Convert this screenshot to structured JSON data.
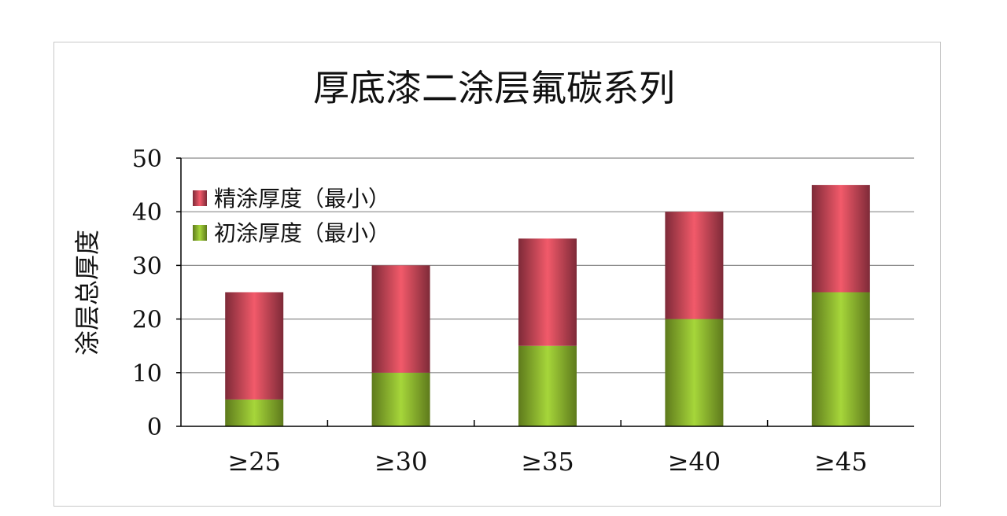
{
  "chart_data": {
    "type": "bar",
    "stacked": true,
    "title": "厚底漆二涂层氟碳系列",
    "xlabel": "",
    "ylabel": "涂层总厚度",
    "categories": [
      "≥25",
      "≥30",
      "≥35",
      "≥40",
      "≥45"
    ],
    "series": [
      {
        "name": "初涂厚度（最小）",
        "values": [
          5,
          10,
          15,
          20,
          25
        ],
        "color": "#8cb82a"
      },
      {
        "name": "精涂厚度（最小）",
        "values": [
          20,
          20,
          20,
          20,
          20
        ],
        "color": "#e04f60"
      }
    ],
    "ylim": [
      0,
      50
    ],
    "yticks": [
      0,
      10,
      20,
      30,
      40,
      50
    ],
    "grid": true,
    "legend": "top-left"
  }
}
